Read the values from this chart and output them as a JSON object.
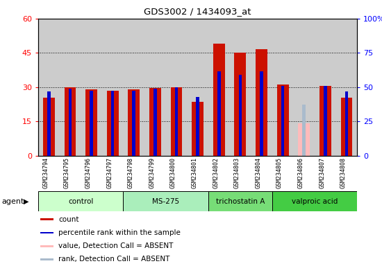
{
  "title": "GDS3002 / 1434093_at",
  "samples": [
    "GSM234794",
    "GSM234795",
    "GSM234796",
    "GSM234797",
    "GSM234798",
    "GSM234799",
    "GSM234800",
    "GSM234801",
    "GSM234802",
    "GSM234803",
    "GSM234804",
    "GSM234805",
    "GSM234806",
    "GSM234807",
    "GSM234808"
  ],
  "count_values": [
    25.5,
    30.0,
    29.0,
    28.5,
    29.0,
    29.5,
    30.0,
    23.5,
    49.0,
    45.0,
    46.5,
    31.0,
    null,
    30.5,
    25.5
  ],
  "rank_values": [
    47.0,
    49.0,
    47.5,
    47.5,
    47.5,
    49.0,
    50.0,
    43.0,
    61.5,
    59.0,
    61.5,
    51.0,
    37.0,
    51.0,
    47.0
  ],
  "absent_count": [
    null,
    null,
    null,
    null,
    null,
    null,
    null,
    null,
    null,
    null,
    null,
    null,
    14.0,
    null,
    null
  ],
  "absent_rank": [
    null,
    null,
    null,
    null,
    null,
    null,
    null,
    null,
    null,
    null,
    null,
    null,
    37.0,
    null,
    null
  ],
  "is_absent": [
    false,
    false,
    false,
    false,
    false,
    false,
    false,
    false,
    false,
    false,
    false,
    false,
    true,
    false,
    false
  ],
  "groups": [
    {
      "label": "control",
      "start": 0,
      "end": 4
    },
    {
      "label": "MS-275",
      "start": 4,
      "end": 8
    },
    {
      "label": "trichostatin A",
      "start": 8,
      "end": 11
    },
    {
      "label": "valproic acid",
      "start": 11,
      "end": 15
    }
  ],
  "group_colors": [
    "#ccffcc",
    "#aaeebb",
    "#77dd77",
    "#44cc44"
  ],
  "ylim_left": [
    0,
    60
  ],
  "ylim_right": [
    0,
    100
  ],
  "yticks_left": [
    0,
    15,
    30,
    45,
    60
  ],
  "ytick_labels_left": [
    "0",
    "15",
    "30",
    "45",
    "60"
  ],
  "yticks_right": [
    0,
    25,
    50,
    75,
    100
  ],
  "ytick_labels_right": [
    "0",
    "25",
    "50",
    "75",
    "100%"
  ],
  "count_color": "#cc1100",
  "rank_color": "#0000cc",
  "absent_count_color": "#ffbbbb",
  "absent_rank_color": "#aabbcc",
  "plot_bg_color": "#cccccc",
  "agent_label": "agent"
}
